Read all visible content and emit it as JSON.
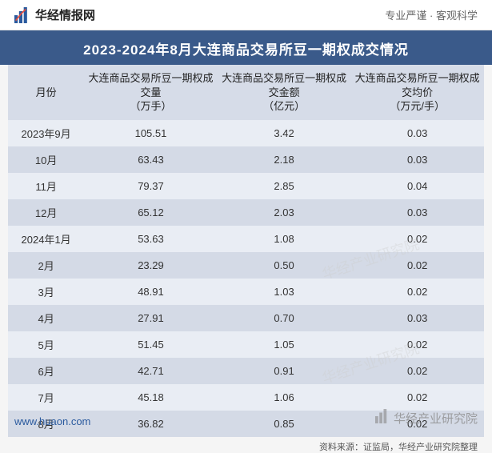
{
  "header": {
    "brand_name": "华经情报网",
    "brand_pinyin": "",
    "tagline_left": "专业严谨",
    "tagline_sep": "·",
    "tagline_right": "客观科学"
  },
  "title": "2023-2024年8月大连商品交易所豆一期权成交情况",
  "table": {
    "columns": [
      "月份",
      "大连商品交易所豆一期权成交量\n（万手）",
      "大连商品交易所豆一期权成交金额\n（亿元）",
      "大连商品交易所豆一期权成交均价\n（万元/手）"
    ],
    "rows": [
      [
        "2023年9月",
        "105.51",
        "3.42",
        "0.03"
      ],
      [
        "10月",
        "63.43",
        "2.18",
        "0.03"
      ],
      [
        "11月",
        "79.37",
        "2.85",
        "0.04"
      ],
      [
        "12月",
        "65.12",
        "2.03",
        "0.03"
      ],
      [
        "2024年1月",
        "53.63",
        "1.08",
        "0.02"
      ],
      [
        "2月",
        "23.29",
        "0.50",
        "0.02"
      ],
      [
        "3月",
        "48.91",
        "1.03",
        "0.02"
      ],
      [
        "4月",
        "27.91",
        "0.70",
        "0.03"
      ],
      [
        "5月",
        "51.45",
        "1.05",
        "0.02"
      ],
      [
        "6月",
        "42.71",
        "0.91",
        "0.02"
      ],
      [
        "7月",
        "45.18",
        "1.06",
        "0.02"
      ],
      [
        "8月",
        "36.82",
        "0.85",
        "0.02"
      ]
    ]
  },
  "styling": {
    "title_bg": "#3a5a8a",
    "title_color": "#ffffff",
    "header_row_bg": "#d6dce8",
    "row_odd_bg": "#e9edf4",
    "row_even_bg": "#d4dae6",
    "body_bg": "#f5f5f5",
    "text_color": "#333333",
    "brand_icon_color": "#2a5a9e",
    "footer_url_color": "#2a5a9e"
  },
  "source": "资料来源：证监局，华经产业研究院整理",
  "footer": {
    "url": "www.huaon.com",
    "brand": "华经产业研究院"
  },
  "watermark": "华经产业研究院"
}
